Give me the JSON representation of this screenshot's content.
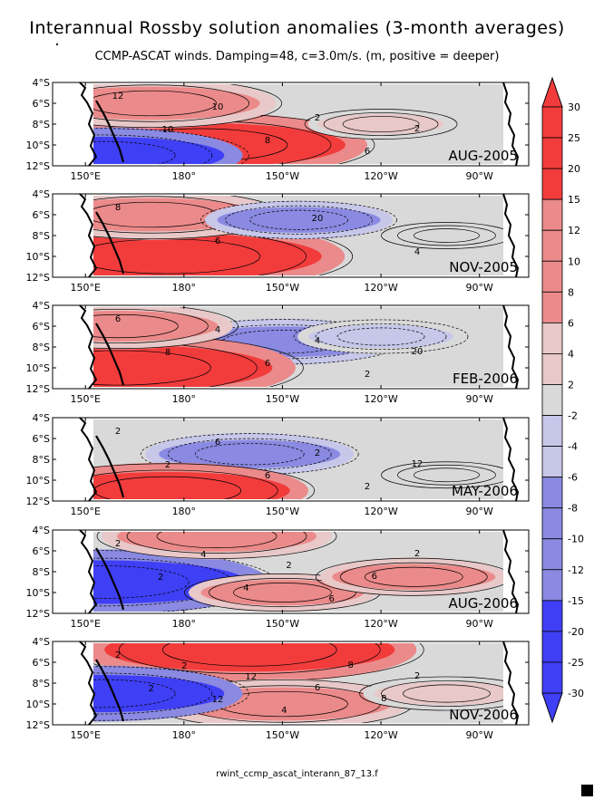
{
  "title": "Interannual Rossby solution anomalies (3-month averages)",
  "subtitle": "CCMP-ASCAT winds. Damping=48, c=3.0m/s. (m, positive = deeper)",
  "footer": "rwint_ccmp_ascat_interann_87_13.f",
  "colors": {
    "neg_strong": "#3f3ff5",
    "neg_mid": "#8a8ae2",
    "neg_light": "#c7c7ea",
    "neutral": "#d9d9d9",
    "pos_light": "#e8c8c8",
    "pos_mid": "#eb8a8a",
    "pos_strong": "#f23c3c",
    "land": "#ffffff",
    "line": "#000000"
  },
  "chart_data": {
    "type": "heatmap",
    "variable": "Rossby solution thermocline depth anomaly",
    "units": "m",
    "x_axis": {
      "range": [
        "140°E",
        "75°W"
      ],
      "ticks": [
        "150°E",
        "180°",
        "150°W",
        "120°W",
        "90°W"
      ]
    },
    "y_axis": {
      "range": [
        "12°S",
        "4°S"
      ],
      "ticks": [
        "4°S",
        "6°S",
        "8°S",
        "10°S",
        "12°S"
      ]
    },
    "colorbar": {
      "orientation": "vertical",
      "position": "right",
      "levels": [
        30,
        25,
        20,
        15,
        12,
        10,
        8,
        6,
        4,
        2,
        -2,
        -4,
        -6,
        -8,
        -10,
        -12,
        -15,
        -20,
        -25,
        -30
      ]
    },
    "panels": [
      {
        "label": "AUG-2005",
        "contour_labels": [
          "12",
          "10",
          "10",
          "8",
          "2",
          "6",
          "2"
        ],
        "features": [
          {
            "lon": 185,
            "lat": -10,
            "value": 20,
            "sign": "positive",
            "desc": "strong positive band 9-11°S"
          },
          {
            "lon": 170,
            "lat": -6,
            "value": 12,
            "sign": "positive"
          },
          {
            "lon": 155,
            "lat": -11,
            "value": -15,
            "sign": "negative"
          },
          {
            "lon": 240,
            "lat": -8,
            "value": 2,
            "sign": "neutral"
          }
        ]
      },
      {
        "label": "NOV-2005",
        "contour_labels": [
          "8",
          "6",
          "20",
          "4"
        ],
        "features": [
          {
            "lon": 175,
            "lat": -10,
            "value": 22,
            "sign": "positive"
          },
          {
            "lon": 170,
            "lat": -6,
            "value": 12,
            "sign": "positive"
          },
          {
            "lon": 215,
            "lat": -6.5,
            "value": -6,
            "sign": "negative"
          },
          {
            "lon": 260,
            "lat": -8,
            "value": 0,
            "sign": "neutral"
          }
        ]
      },
      {
        "label": "FEB-2006",
        "contour_labels": [
          "6",
          "8",
          "4",
          "6",
          "4",
          "2",
          "20"
        ],
        "features": [
          {
            "lon": 210,
            "lat": -7.5,
            "value": -10,
            "sign": "negative"
          },
          {
            "lon": 160,
            "lat": -10,
            "value": 22,
            "sign": "positive"
          },
          {
            "lon": 160,
            "lat": -6,
            "value": 10,
            "sign": "positive"
          },
          {
            "lon": 240,
            "lat": -7,
            "value": -4,
            "sign": "negative"
          }
        ]
      },
      {
        "label": "MAY-2006",
        "contour_labels": [
          "2",
          "2",
          "6",
          "6",
          "2",
          "2",
          "12"
        ],
        "features": [
          {
            "lon": 200,
            "lat": -7.5,
            "value": -8,
            "sign": "negative"
          },
          {
            "lon": 175,
            "lat": -11,
            "value": 15,
            "sign": "positive"
          },
          {
            "lon": 260,
            "lat": -9.5,
            "value": 0,
            "sign": "neutral"
          }
        ]
      },
      {
        "label": "AUG-2006",
        "contour_labels": [
          "2",
          "2",
          "4",
          "4",
          "2",
          "6",
          "6",
          "2"
        ],
        "features": [
          {
            "lon": 155,
            "lat": -9,
            "value": -20,
            "sign": "negative"
          },
          {
            "lon": 210,
            "lat": -10,
            "value": 6,
            "sign": "positive"
          },
          {
            "lon": 190,
            "lat": -4.6,
            "value": 10,
            "sign": "positive"
          },
          {
            "lon": 250,
            "lat": -8.5,
            "value": 6,
            "sign": "positive"
          }
        ]
      },
      {
        "label": "NOV-2006",
        "contour_labels": [
          "2",
          "2",
          "2",
          "12",
          "12",
          "4",
          "6",
          "8",
          "8",
          "2"
        ],
        "features": [
          {
            "lon": 200,
            "lat": -4.8,
            "value": 20,
            "sign": "positive"
          },
          {
            "lon": 210,
            "lat": -10,
            "value": 12,
            "sign": "positive"
          },
          {
            "lon": 155,
            "lat": -9,
            "value": -15,
            "sign": "negative"
          },
          {
            "lon": 260,
            "lat": -9,
            "value": 4,
            "sign": "positive"
          }
        ]
      }
    ]
  }
}
